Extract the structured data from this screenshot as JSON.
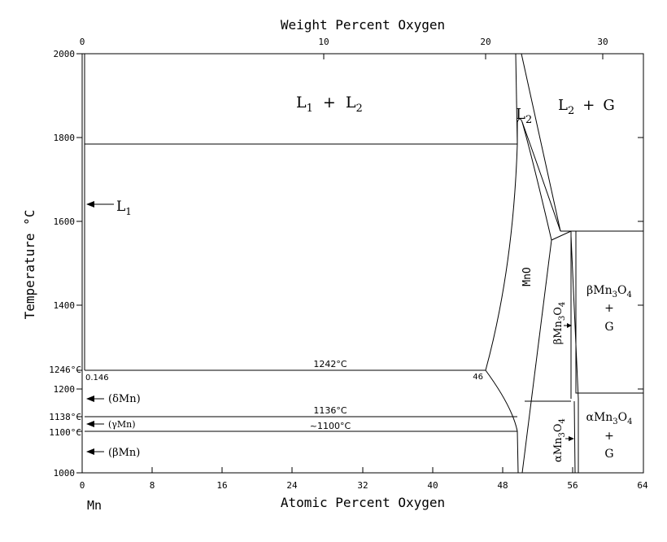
{
  "top_axis": {
    "title": "Weight Percent Oxygen",
    "ticks": [
      "0",
      "10",
      "20",
      "30"
    ]
  },
  "bottom_axis": {
    "title": "Atomic Percent Oxygen",
    "ticks": [
      "0",
      "8",
      "16",
      "24",
      "32",
      "40",
      "48",
      "56",
      "64"
    ],
    "component_label": "Mn"
  },
  "left_axis": {
    "title": "Temperature °C",
    "ticks": [
      "2000",
      "1800",
      "1600",
      "1400",
      "1200",
      "1000"
    ],
    "special_ticks": [
      "1246°C",
      "1138°C",
      "1100°C"
    ]
  },
  "regions": {
    "l1_l2": {
      "base1": "L",
      "sub1": "1",
      "plus": "+",
      "base2": "L",
      "sub2": "2"
    },
    "l2": {
      "base": "L",
      "sub": "2"
    },
    "l2_g": {
      "base": "L",
      "sub": "2",
      "plus": "+",
      "g": "G"
    },
    "l1": {
      "base": "L",
      "sub": "1"
    },
    "mno": "MnO",
    "beta_mn3o4": {
      "greek": "β",
      "a": "Mn",
      "s1": "3",
      "b": "O",
      "s2": "4"
    },
    "beta_mn3o4_g": {
      "greek": "β",
      "a": "Mn",
      "s1": "3",
      "b": "O",
      "s2": "4",
      "plus": "+",
      "g": "G"
    },
    "alpha_mn3o4": {
      "greek": "α",
      "a": "Mn",
      "s1": "3",
      "b": "O",
      "s2": "4"
    },
    "alpha_mn3o4_g": {
      "greek": "α",
      "a": "Mn",
      "s1": "3",
      "b": "O",
      "s2": "4",
      "plus": "+",
      "g": "G"
    }
  },
  "phases_left": [
    "(δMn)",
    "(γMn)",
    "(βMn)"
  ],
  "annotations": {
    "t1242": "1242°C",
    "t1136": "1136°C",
    "t1100": "~1100°C",
    "c0146": "0.146",
    "c46": "46"
  }
}
